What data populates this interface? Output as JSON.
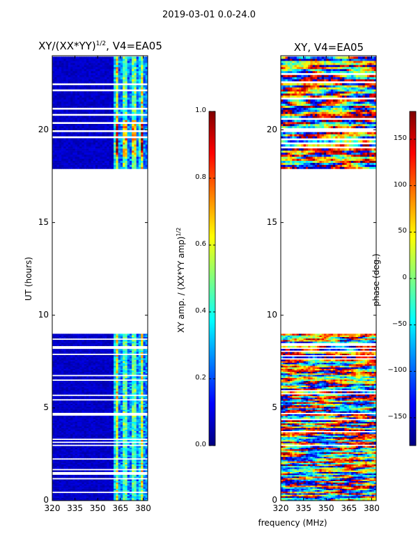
{
  "suptitle": "2019-03-01 0.0-24.0",
  "x_shared_label": "frequency (MHz)",
  "colorbar_stops": [
    "#00007f",
    "#0000ff",
    "#007fff",
    "#00ffff",
    "#7fff7f",
    "#ffff00",
    "#ff7f00",
    "#ff0000",
    "#7f0000"
  ],
  "chart_data": [
    {
      "type": "heatmap",
      "title": "XY/(XX*YY)^{1/2}, V4=EA05",
      "title_main": "XY/(XX*YY)",
      "title_sup": "1/2",
      "title_tail": ", V4=EA05",
      "xlabel": "",
      "ylabel": "UT (hours)",
      "xlim": [
        320,
        383
      ],
      "ylim": [
        0,
        24
      ],
      "xticks": [
        320,
        335,
        350,
        365,
        380
      ],
      "xtick_labels": [
        "320",
        "335",
        "350",
        "365",
        "380"
      ],
      "yticks": [
        0,
        5,
        10,
        15,
        20
      ],
      "ytick_labels": [
        "0",
        "5",
        "10",
        "15",
        "20"
      ],
      "data_gap_hours": [
        9.0,
        17.9
      ],
      "colorbar": {
        "label": "XY amp. / (XX*YY amp)^{1/2}",
        "label_main": "XY amp. / (XX*YY amp)",
        "label_sup": "1/2",
        "range": [
          0.0,
          1.0
        ],
        "ticks": [
          0.0,
          0.2,
          0.4,
          0.6,
          0.8,
          1.0
        ],
        "tick_labels": [
          "0.0",
          "0.2",
          "0.4",
          "0.6",
          "0.8",
          "1.0"
        ]
      }
    },
    {
      "type": "heatmap",
      "title": "XY, V4=EA05",
      "xlabel": "frequency (MHz)",
      "ylabel": "",
      "xlim": [
        320,
        383
      ],
      "ylim": [
        0,
        24
      ],
      "xticks": [
        320,
        335,
        350,
        365,
        380
      ],
      "xtick_labels": [
        "320",
        "335",
        "350",
        "365",
        "380"
      ],
      "yticks": [
        0,
        5,
        10,
        15,
        20
      ],
      "ytick_labels": [
        "0",
        "5",
        "10",
        "15",
        "20"
      ],
      "data_gap_hours": [
        9.0,
        17.9
      ],
      "colorbar": {
        "label": "phase (deg.)",
        "range": [
          -180,
          180
        ],
        "ticks": [
          -150,
          -100,
          -50,
          0,
          50,
          100,
          150
        ],
        "tick_labels": [
          "−150",
          "−100",
          "−50",
          "0",
          "50",
          "100",
          "150"
        ]
      }
    }
  ]
}
